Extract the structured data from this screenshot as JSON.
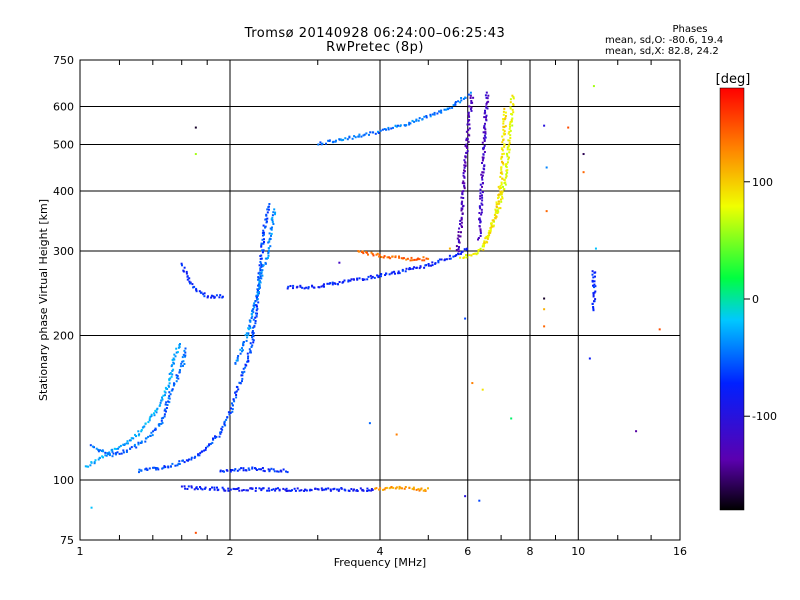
{
  "header": {
    "title": "Tromsø 20140928 06:24:00–06:25:43",
    "subtitle": "RwPretec (8p)"
  },
  "stats": {
    "heading": "Phases",
    "line_o": "mean, sd,O: -80.6, 19.4",
    "line_x": "mean, sd,X:  82.8, 24.2"
  },
  "colorbar": {
    "label": "[deg]",
    "ticks": [
      100,
      0,
      -100
    ],
    "range": [
      -180,
      180
    ]
  },
  "chart_data": {
    "type": "scatter",
    "xlabel": "Frequency [MHz]",
    "ylabel": "Stationary phase Virtual Height [km]",
    "xscale": "log",
    "yscale": "log",
    "xlim": [
      1,
      16
    ],
    "ylim": [
      75,
      750
    ],
    "xticks": [
      1,
      2,
      4,
      6,
      8,
      10,
      16
    ],
    "yticks": [
      75,
      100,
      200,
      300,
      400,
      500,
      600,
      750
    ],
    "grid": true,
    "color_by": "phase_deg",
    "traces": [
      {
        "phase": -30,
        "pts": [
          [
            1.02,
            107
          ],
          [
            1.1,
            112
          ],
          [
            1.2,
            118
          ],
          [
            1.3,
            125
          ],
          [
            1.42,
            140
          ],
          [
            1.5,
            160
          ],
          [
            1.55,
            185
          ],
          [
            1.58,
            195
          ]
        ]
      },
      {
        "phase": -50,
        "pts": [
          [
            1.05,
            118
          ],
          [
            1.15,
            113
          ],
          [
            1.25,
            116
          ],
          [
            1.35,
            122
          ],
          [
            1.45,
            132
          ],
          [
            1.52,
            155
          ],
          [
            1.6,
            175
          ],
          [
            1.62,
            190
          ]
        ]
      },
      {
        "phase": -60,
        "pts": [
          [
            1.3,
            105
          ],
          [
            1.5,
            107
          ],
          [
            1.7,
            112
          ],
          [
            1.9,
            125
          ],
          [
            2.0,
            140
          ],
          [
            2.1,
            165
          ],
          [
            2.2,
            190
          ],
          [
            2.25,
            230
          ],
          [
            2.3,
            290
          ],
          [
            2.33,
            330
          ],
          [
            2.36,
            360
          ],
          [
            2.38,
            380
          ]
        ]
      },
      {
        "phase": -40,
        "pts": [
          [
            2.05,
            175
          ],
          [
            2.15,
            200
          ],
          [
            2.25,
            240
          ],
          [
            2.3,
            270
          ],
          [
            2.38,
            300
          ],
          [
            2.42,
            345
          ],
          [
            2.45,
            370
          ]
        ]
      },
      {
        "phase": -70,
        "pts": [
          [
            1.6,
            282
          ],
          [
            1.63,
            268
          ],
          [
            1.68,
            252
          ],
          [
            1.8,
            242
          ],
          [
            1.95,
            243
          ]
        ]
      },
      {
        "phase": -75,
        "pts": [
          [
            2.6,
            253
          ],
          [
            3.0,
            254
          ],
          [
            3.5,
            262
          ],
          [
            4.0,
            268
          ],
          [
            4.5,
            275
          ],
          [
            5.0,
            282
          ],
          [
            5.5,
            292
          ],
          [
            6.0,
            305
          ]
        ]
      },
      {
        "phase": 140,
        "pts": [
          [
            3.6,
            300
          ],
          [
            3.9,
            296
          ],
          [
            4.2,
            293
          ],
          [
            4.5,
            290
          ],
          [
            4.8,
            290
          ],
          [
            5.0,
            291
          ]
        ]
      },
      {
        "phase": -80,
        "pts": [
          [
            1.6,
            97
          ],
          [
            2.0,
            96
          ],
          [
            2.5,
            96
          ],
          [
            3.0,
            96
          ],
          [
            3.5,
            96
          ],
          [
            3.9,
            96
          ]
        ]
      },
      {
        "phase": 120,
        "pts": [
          [
            3.9,
            96
          ],
          [
            4.2,
            97
          ],
          [
            4.5,
            97
          ],
          [
            4.8,
            96
          ],
          [
            5.0,
            96
          ]
        ]
      },
      {
        "phase": -70,
        "pts": [
          [
            1.9,
            105
          ],
          [
            2.2,
            106
          ],
          [
            2.6,
            105
          ]
        ]
      },
      {
        "phase": -45,
        "pts": [
          [
            3.0,
            505
          ],
          [
            3.5,
            520
          ],
          [
            4.0,
            535
          ],
          [
            4.5,
            555
          ],
          [
            5.0,
            575
          ],
          [
            5.5,
            600
          ],
          [
            5.9,
            630
          ],
          [
            6.1,
            645
          ]
        ]
      },
      {
        "phase": -130,
        "pts": [
          [
            5.7,
            300
          ],
          [
            5.8,
            350
          ],
          [
            5.85,
            400
          ],
          [
            5.9,
            450
          ],
          [
            5.95,
            500
          ],
          [
            6.0,
            550
          ],
          [
            6.05,
            600
          ],
          [
            6.1,
            640
          ]
        ]
      },
      {
        "phase": -120,
        "pts": [
          [
            6.3,
            320
          ],
          [
            6.35,
            380
          ],
          [
            6.4,
            450
          ],
          [
            6.45,
            520
          ],
          [
            6.5,
            600
          ],
          [
            6.55,
            650
          ]
        ]
      },
      {
        "phase": 80,
        "pts": [
          [
            5.8,
            292
          ],
          [
            6.0,
            295
          ],
          [
            6.3,
            300
          ],
          [
            6.6,
            330
          ],
          [
            6.9,
            370
          ],
          [
            7.1,
            420
          ],
          [
            7.2,
            480
          ],
          [
            7.3,
            560
          ],
          [
            7.35,
            640
          ]
        ]
      },
      {
        "phase": 90,
        "pts": [
          [
            6.4,
            305
          ],
          [
            6.7,
            340
          ],
          [
            6.9,
            390
          ],
          [
            7.0,
            450
          ],
          [
            7.05,
            520
          ],
          [
            7.1,
            600
          ]
        ]
      },
      {
        "phase": -70,
        "pts": [
          [
            10.7,
            275
          ],
          [
            10.7,
            265
          ],
          [
            10.7,
            250
          ],
          [
            10.7,
            238
          ],
          [
            10.7,
            225
          ]
        ]
      }
    ],
    "scatter_points": [
      {
        "x": 1.7,
        "y": 545,
        "phase": -170
      },
      {
        "x": 1.7,
        "y": 480,
        "phase": 60
      },
      {
        "x": 3.3,
        "y": 285,
        "phase": -120
      },
      {
        "x": 3.8,
        "y": 132,
        "phase": -50
      },
      {
        "x": 4.3,
        "y": 125,
        "phase": 130
      },
      {
        "x": 5.5,
        "y": 305,
        "phase": 110
      },
      {
        "x": 5.9,
        "y": 218,
        "phase": -60
      },
      {
        "x": 6.1,
        "y": 160,
        "phase": 130
      },
      {
        "x": 6.4,
        "y": 155,
        "phase": 90
      },
      {
        "x": 5.9,
        "y": 93,
        "phase": -100
      },
      {
        "x": 6.3,
        "y": 91,
        "phase": -60
      },
      {
        "x": 7.3,
        "y": 135,
        "phase": 10
      },
      {
        "x": 8.5,
        "y": 550,
        "phase": -100
      },
      {
        "x": 8.6,
        "y": 450,
        "phase": -40
      },
      {
        "x": 8.6,
        "y": 365,
        "phase": 140
      },
      {
        "x": 8.5,
        "y": 240,
        "phase": -170
      },
      {
        "x": 8.5,
        "y": 228,
        "phase": 110
      },
      {
        "x": 8.5,
        "y": 210,
        "phase": 140
      },
      {
        "x": 9.5,
        "y": 545,
        "phase": 150
      },
      {
        "x": 10.2,
        "y": 440,
        "phase": 140
      },
      {
        "x": 10.2,
        "y": 480,
        "phase": -160
      },
      {
        "x": 10.7,
        "y": 665,
        "phase": 60
      },
      {
        "x": 10.5,
        "y": 180,
        "phase": -80
      },
      {
        "x": 10.8,
        "y": 305,
        "phase": -20
      },
      {
        "x": 13.0,
        "y": 127,
        "phase": -140
      },
      {
        "x": 14.5,
        "y": 207,
        "phase": 150
      },
      {
        "x": 1.05,
        "y": 88,
        "phase": -20
      },
      {
        "x": 1.7,
        "y": 78,
        "phase": 150
      }
    ]
  }
}
